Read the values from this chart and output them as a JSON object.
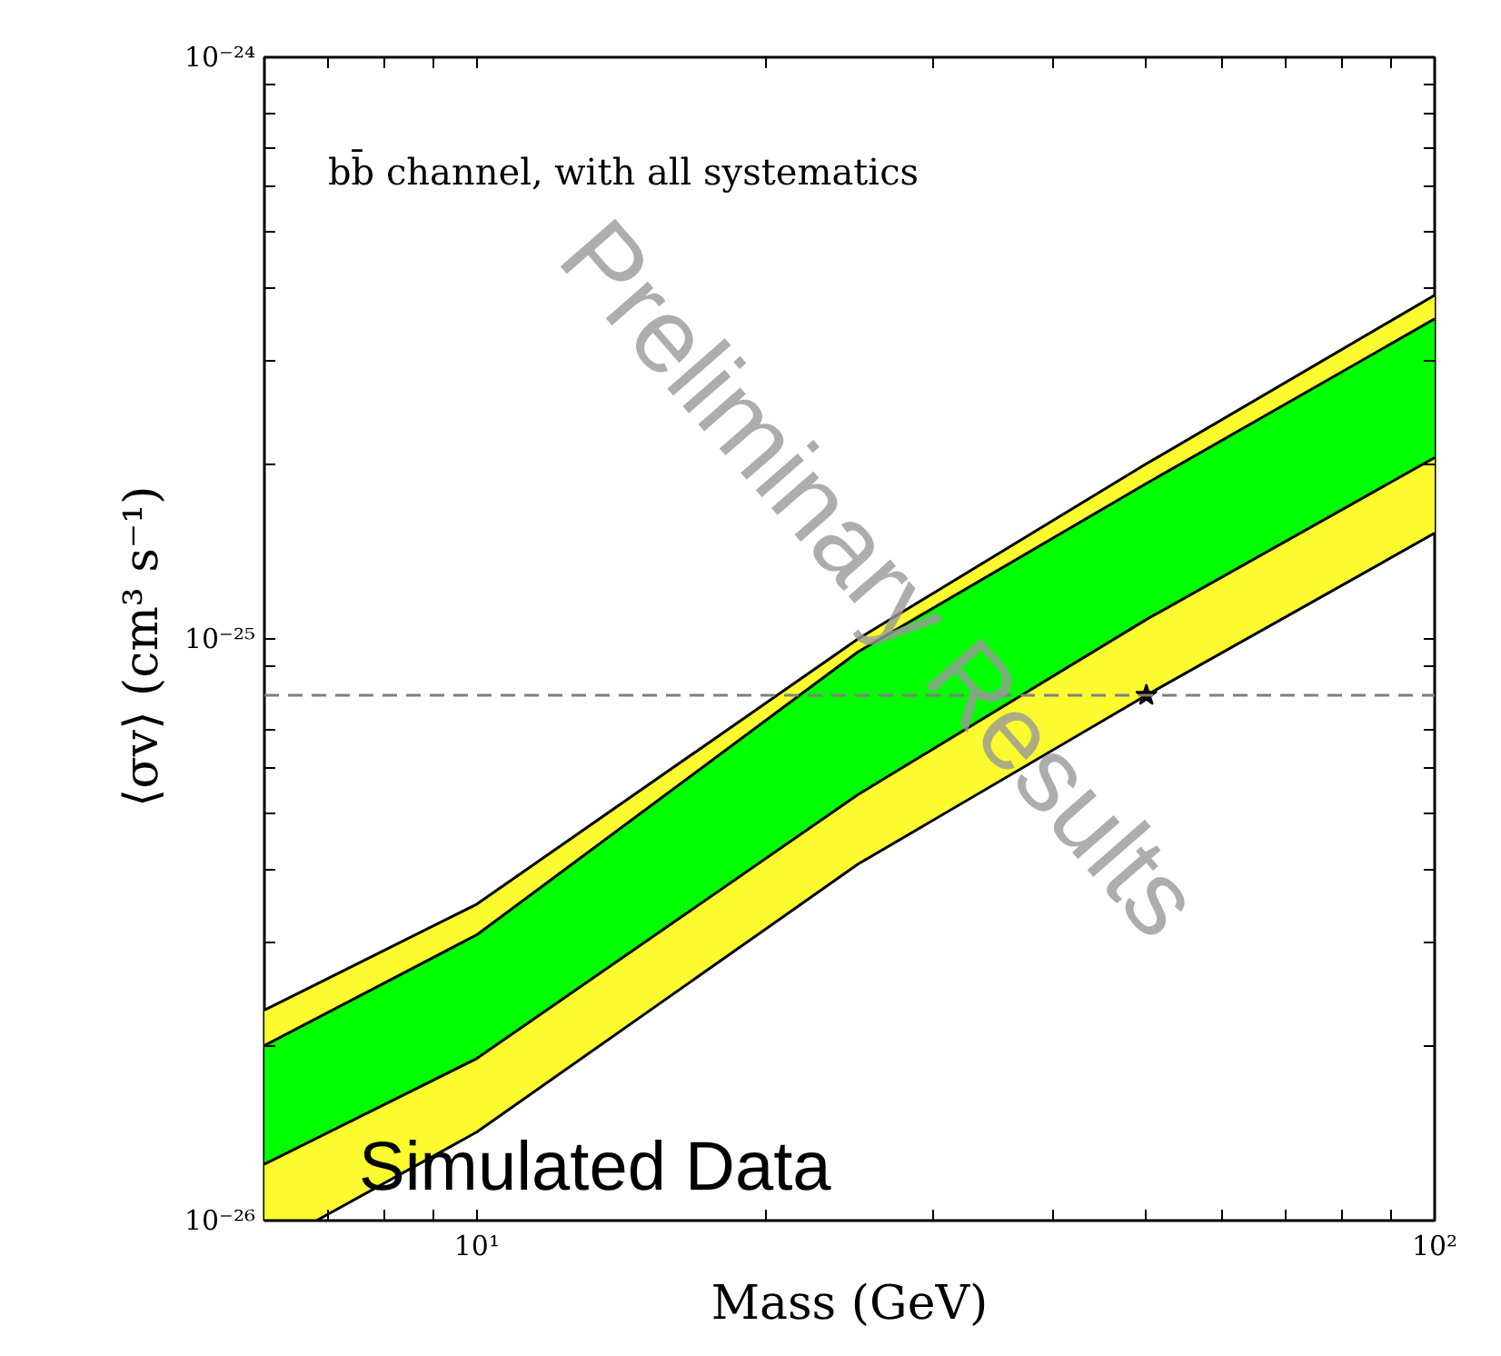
{
  "chart_data": {
    "type": "area",
    "xlabel": "Mass (GeV)",
    "ylabel": "⟨σv⟩ (cm³  s⁻¹)",
    "log": "xy",
    "grid": false,
    "xlim": [
      6,
      100
    ],
    "ylim": [
      1e-26,
      1e-24
    ],
    "xticks": [
      {
        "value": 7,
        "label": null
      },
      {
        "value": 8,
        "label": null
      },
      {
        "value": 9,
        "label": null
      },
      {
        "value": 10,
        "label": "10¹"
      },
      {
        "value": 20,
        "label": null
      },
      {
        "value": 30,
        "label": null
      },
      {
        "value": 40,
        "label": null
      },
      {
        "value": 50,
        "label": null
      },
      {
        "value": 60,
        "label": null
      },
      {
        "value": 70,
        "label": null
      },
      {
        "value": 80,
        "label": null
      },
      {
        "value": 90,
        "label": null
      },
      {
        "value": 100,
        "label": "10²"
      }
    ],
    "yticks": [
      {
        "value": 1e-26,
        "label": "10⁻²⁶"
      },
      {
        "value": 2e-26,
        "label": null
      },
      {
        "value": 3e-26,
        "label": null
      },
      {
        "value": 4e-26,
        "label": null
      },
      {
        "value": 5e-26,
        "label": null
      },
      {
        "value": 6e-26,
        "label": null
      },
      {
        "value": 7e-26,
        "label": null
      },
      {
        "value": 8e-26,
        "label": null
      },
      {
        "value": 9e-26,
        "label": null
      },
      {
        "value": 1e-25,
        "label": "10⁻²⁵"
      },
      {
        "value": 2e-25,
        "label": null
      },
      {
        "value": 3e-25,
        "label": null
      },
      {
        "value": 4e-25,
        "label": null
      },
      {
        "value": 5e-25,
        "label": null
      },
      {
        "value": 6e-25,
        "label": null
      },
      {
        "value": 7e-25,
        "label": null
      },
      {
        "value": 8e-25,
        "label": null
      },
      {
        "value": 9e-25,
        "label": null
      },
      {
        "value": 1e-24,
        "label": "10⁻²⁴"
      }
    ],
    "series": [
      {
        "color": "#fbfb2f",
        "x": [
          6,
          6.8,
          10,
          25,
          50,
          100
        ],
        "values": [
          2.3e-26,
          2.55e-26,
          3.5e-26,
          1e-25,
          2e-25,
          3.9e-25
        ]
      },
      {
        "color": "#00ff00",
        "x": [
          6,
          10,
          25,
          50,
          100
        ],
        "values": [
          2e-26,
          3.1e-26,
          9.5e-26,
          1.85e-25,
          3.55e-25
        ]
      },
      {
        "type": "line",
        "color": "#000000",
        "x": [
          6,
          10,
          25,
          50,
          100
        ],
        "values": [
          1.25e-26,
          1.9e-26,
          5.4e-26,
          1.08e-25,
          2.05e-25
        ]
      },
      {
        "type": "line",
        "color": "#000000",
        "x": [
          6,
          6.8,
          10,
          25,
          50,
          100
        ],
        "values": [
          1e-26,
          1e-26,
          1.42e-26,
          4.1e-26,
          8e-26,
          1.52e-25
        ]
      },
      {
        "type": "scatter",
        "color": "#000000",
        "marker": "star",
        "x": [
          50
        ],
        "values": [
          8e-26
        ]
      }
    ],
    "ref_lines": [
      {
        "axis": "y",
        "value": 8e-26,
        "color": "#808080",
        "line_style": "dashed"
      }
    ],
    "annotations": [
      "bb̄ channel, with all systematics",
      "Simulated Data",
      "Preliminary Results"
    ]
  }
}
